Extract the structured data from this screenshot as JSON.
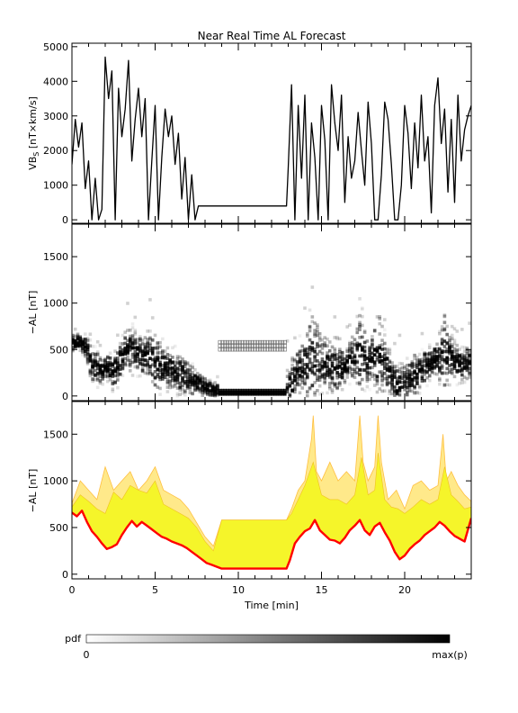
{
  "chart_data": [
    {
      "type": "line",
      "title": "Near Real Time AL Forecast",
      "ylabel": "VB",
      "ylabel_subscript": "S",
      "ylabel_units": "[nT×km/s]",
      "xlim": [
        0,
        24
      ],
      "ylim": [
        -100,
        5100
      ],
      "yticks": [
        0,
        1000,
        2000,
        3000,
        4000,
        5000
      ],
      "x_major_ticks": [
        0,
        5,
        10,
        15,
        20
      ],
      "series": [
        {
          "color": "#000000",
          "x": [
            0,
            0.2,
            0.4,
            0.6,
            0.8,
            1.0,
            1.2,
            1.4,
            1.6,
            1.8,
            2.0,
            2.2,
            2.4,
            2.6,
            2.8,
            3.0,
            3.2,
            3.4,
            3.6,
            3.8,
            4.0,
            4.2,
            4.4,
            4.6,
            4.8,
            5.0,
            5.2,
            5.4,
            5.6,
            5.8,
            6.0,
            6.2,
            6.4,
            6.6,
            6.8,
            7.0,
            7.2,
            7.4,
            7.6,
            8.0,
            9.0,
            10.0,
            11.0,
            12.0,
            12.9,
            13.0,
            13.2,
            13.4,
            13.6,
            13.8,
            14.0,
            14.2,
            14.4,
            14.6,
            14.8,
            15.0,
            15.2,
            15.4,
            15.6,
            15.8,
            16.0,
            16.2,
            16.4,
            16.6,
            16.8,
            17.0,
            17.2,
            17.4,
            17.6,
            17.8,
            18.0,
            18.2,
            18.4,
            18.6,
            18.8,
            19.0,
            19.2,
            19.4,
            19.6,
            19.8,
            20.0,
            20.2,
            20.4,
            20.6,
            20.8,
            21.0,
            21.2,
            21.4,
            21.6,
            21.8,
            22.0,
            22.2,
            22.4,
            22.6,
            22.8,
            23.0,
            23.2,
            23.4,
            23.6,
            23.8,
            24.0
          ],
          "y": [
            1600,
            2900,
            2100,
            2800,
            900,
            1700,
            0,
            1200,
            0,
            300,
            4700,
            3500,
            4300,
            0,
            3800,
            2400,
            3200,
            4600,
            1700,
            2900,
            3800,
            2400,
            3500,
            0,
            1700,
            3300,
            0,
            1800,
            3200,
            2400,
            3000,
            1600,
            2500,
            600,
            1800,
            0,
            1300,
            0,
            400,
            400,
            400,
            400,
            400,
            400,
            400,
            1500,
            3900,
            0,
            3300,
            1200,
            3600,
            0,
            2800,
            1800,
            0,
            3300,
            2300,
            0,
            3900,
            2800,
            2000,
            3600,
            500,
            2400,
            1200,
            1700,
            3100,
            2000,
            1000,
            3400,
            2200,
            0,
            0,
            1300,
            3400,
            2900,
            1600,
            0,
            0,
            1000,
            3300,
            2500,
            900,
            2800,
            1500,
            3600,
            1700,
            2400,
            200,
            3300,
            4100,
            2200,
            3200,
            800,
            2900,
            500,
            3600,
            1700,
            2600,
            3000,
            3300
          ]
        }
      ]
    },
    {
      "type": "heatmap",
      "ylabel": "−AL [nT]",
      "xlim": [
        0,
        24
      ],
      "ylim": [
        -50,
        1850
      ],
      "yticks": [
        0,
        500,
        1000,
        1500
      ],
      "x_major_ticks": [
        0,
        5,
        10,
        15,
        20
      ],
      "median_al": [
        [
          0,
          560
        ],
        [
          0.3,
          580
        ],
        [
          0.6,
          570
        ],
        [
          0.9,
          500
        ],
        [
          1.2,
          330
        ],
        [
          1.5,
          300
        ],
        [
          1.8,
          280
        ],
        [
          2.1,
          320
        ],
        [
          2.4,
          260
        ],
        [
          2.7,
          300
        ],
        [
          3.0,
          420
        ],
        [
          3.3,
          540
        ],
        [
          3.6,
          480
        ],
        [
          3.9,
          460
        ],
        [
          4.2,
          430
        ],
        [
          4.5,
          460
        ],
        [
          4.8,
          380
        ],
        [
          5.1,
          350
        ],
        [
          5.4,
          330
        ],
        [
          5.7,
          290
        ],
        [
          6.0,
          310
        ],
        [
          6.3,
          250
        ],
        [
          6.6,
          230
        ],
        [
          6.9,
          200
        ],
        [
          7.2,
          170
        ],
        [
          7.5,
          150
        ],
        [
          7.8,
          110
        ],
        [
          8.1,
          90
        ],
        [
          8.4,
          60
        ],
        [
          8.7,
          50
        ],
        [
          9.0,
          40
        ],
        [
          10.0,
          40
        ],
        [
          11.0,
          40
        ],
        [
          12.0,
          40
        ],
        [
          12.9,
          40
        ],
        [
          13.1,
          100
        ],
        [
          13.4,
          210
        ],
        [
          13.7,
          300
        ],
        [
          14.0,
          330
        ],
        [
          14.3,
          380
        ],
        [
          14.6,
          420
        ],
        [
          14.9,
          390
        ],
        [
          15.2,
          350
        ],
        [
          15.5,
          320
        ],
        [
          15.8,
          300
        ],
        [
          16.1,
          290
        ],
        [
          16.4,
          300
        ],
        [
          16.7,
          380
        ],
        [
          17.0,
          430
        ],
        [
          17.3,
          470
        ],
        [
          17.6,
          420
        ],
        [
          17.9,
          380
        ],
        [
          18.2,
          450
        ],
        [
          18.5,
          420
        ],
        [
          18.8,
          350
        ],
        [
          19.1,
          260
        ],
        [
          19.4,
          150
        ],
        [
          19.7,
          90
        ],
        [
          20.0,
          120
        ],
        [
          20.3,
          170
        ],
        [
          20.6,
          220
        ],
        [
          20.9,
          250
        ],
        [
          21.2,
          300
        ],
        [
          21.5,
          350
        ],
        [
          21.8,
          380
        ],
        [
          22.1,
          420
        ],
        [
          22.4,
          480
        ],
        [
          22.7,
          430
        ],
        [
          23.0,
          380
        ],
        [
          23.3,
          340
        ],
        [
          23.6,
          330
        ],
        [
          24.0,
          380
        ]
      ],
      "high_al": [
        [
          0,
          700
        ],
        [
          1.0,
          850
        ],
        [
          2.0,
          600
        ],
        [
          3.0,
          900
        ],
        [
          3.5,
          1100
        ],
        [
          4.0,
          920
        ],
        [
          4.5,
          1000
        ],
        [
          5.0,
          1150
        ],
        [
          5.5,
          900
        ],
        [
          6.0,
          800
        ],
        [
          6.5,
          760
        ],
        [
          7.0,
          600
        ],
        [
          7.5,
          450
        ],
        [
          8.0,
          300
        ],
        [
          8.5,
          250
        ],
        [
          9.0,
          590
        ],
        [
          12.9,
          590
        ],
        [
          13.2,
          700
        ],
        [
          14.0,
          1200
        ],
        [
          14.5,
          1700
        ],
        [
          15.0,
          1100
        ],
        [
          15.5,
          1000
        ],
        [
          16.0,
          1100
        ],
        [
          16.5,
          800
        ],
        [
          17.0,
          1000
        ],
        [
          17.3,
          1700
        ],
        [
          17.6,
          1200
        ],
        [
          18.0,
          900
        ],
        [
          18.4,
          1700
        ],
        [
          18.8,
          1100
        ],
        [
          19.2,
          700
        ],
        [
          19.6,
          650
        ],
        [
          20.0,
          700
        ],
        [
          20.5,
          800
        ],
        [
          21.0,
          700
        ],
        [
          21.5,
          800
        ],
        [
          22.0,
          900
        ],
        [
          22.4,
          1500
        ],
        [
          22.8,
          1000
        ],
        [
          23.2,
          800
        ],
        [
          23.6,
          750
        ],
        [
          24.0,
          800
        ]
      ]
    },
    {
      "type": "area",
      "ylabel": "−AL [nT]",
      "xlabel": "Time [min]",
      "xlim": [
        0,
        24
      ],
      "ylim": [
        -50,
        1850
      ],
      "yticks": [
        0,
        500,
        1000,
        1500
      ],
      "x_major_ticks": [
        0,
        5,
        10,
        15,
        20
      ],
      "series": [
        {
          "role": "lower-bound",
          "color": "#ff0000",
          "x": [
            0,
            0.3,
            0.6,
            0.9,
            1.2,
            1.5,
            1.8,
            2.1,
            2.4,
            2.7,
            3.0,
            3.3,
            3.6,
            3.9,
            4.2,
            4.5,
            4.8,
            5.1,
            5.4,
            5.7,
            6.0,
            6.3,
            6.6,
            6.9,
            7.2,
            7.5,
            7.8,
            8.1,
            8.4,
            8.7,
            9.0,
            10.0,
            11.0,
            12.0,
            12.9,
            13.1,
            13.4,
            13.7,
            14.0,
            14.3,
            14.6,
            14.9,
            15.2,
            15.5,
            15.8,
            16.1,
            16.4,
            16.7,
            17.0,
            17.3,
            17.6,
            17.9,
            18.2,
            18.5,
            18.8,
            19.1,
            19.4,
            19.7,
            20.0,
            20.3,
            20.6,
            20.9,
            21.2,
            21.5,
            21.8,
            22.1,
            22.4,
            22.7,
            23.0,
            23.3,
            23.6,
            24.0
          ],
          "y": [
            660,
            620,
            680,
            560,
            460,
            400,
            330,
            270,
            290,
            320,
            420,
            500,
            570,
            510,
            560,
            520,
            480,
            440,
            400,
            380,
            350,
            330,
            310,
            280,
            240,
            200,
            160,
            120,
            100,
            80,
            60,
            60,
            60,
            60,
            60,
            150,
            330,
            400,
            460,
            490,
            580,
            470,
            420,
            370,
            360,
            330,
            390,
            470,
            520,
            580,
            470,
            420,
            510,
            550,
            450,
            360,
            240,
            160,
            200,
            270,
            320,
            360,
            420,
            460,
            500,
            560,
            520,
            460,
            410,
            380,
            350,
            600
          ]
        },
        {
          "role": "inner-band",
          "color": "#f5f52a",
          "x": [
            0,
            0.5,
            1.0,
            1.5,
            2.0,
            2.5,
            3.0,
            3.5,
            4.0,
            4.5,
            5.0,
            5.5,
            6.0,
            6.5,
            7.0,
            7.5,
            8.0,
            8.5,
            9.0,
            12.9,
            13.2,
            13.6,
            14.0,
            14.5,
            15.0,
            15.5,
            16.0,
            16.5,
            17.0,
            17.4,
            17.8,
            18.2,
            18.4,
            18.8,
            19.2,
            19.6,
            20.0,
            20.5,
            21.0,
            21.5,
            22.0,
            22.4,
            22.8,
            23.2,
            23.6,
            24.0
          ],
          "y": [
            720,
            850,
            780,
            700,
            650,
            880,
            800,
            950,
            900,
            870,
            1000,
            750,
            700,
            650,
            600,
            500,
            350,
            250,
            580,
            580,
            650,
            800,
            950,
            1200,
            850,
            800,
            800,
            750,
            850,
            1250,
            850,
            900,
            1300,
            800,
            720,
            700,
            650,
            720,
            800,
            750,
            800,
            1150,
            850,
            780,
            700,
            720
          ]
        },
        {
          "role": "upper-bound",
          "color": "#ffbf40",
          "x": [
            0,
            0.5,
            1.0,
            1.5,
            2.0,
            2.5,
            3.0,
            3.5,
            4.0,
            4.5,
            5.0,
            5.5,
            6.0,
            6.5,
            7.0,
            7.5,
            8.0,
            8.5,
            9.0,
            12.9,
            13.2,
            13.6,
            14.0,
            14.4,
            14.5,
            14.7,
            15.0,
            15.5,
            16.0,
            16.5,
            17.0,
            17.3,
            17.5,
            17.8,
            18.2,
            18.4,
            18.6,
            19.0,
            19.5,
            20.0,
            20.5,
            21.0,
            21.5,
            22.0,
            22.3,
            22.5,
            22.8,
            23.2,
            23.6,
            24.0
          ],
          "y": [
            760,
            1000,
            900,
            800,
            1150,
            900,
            1000,
            1100,
            900,
            1000,
            1150,
            900,
            850,
            800,
            700,
            550,
            400,
            300,
            580,
            580,
            700,
            900,
            1000,
            1450,
            1700,
            1100,
            1000,
            1200,
            1000,
            1100,
            1000,
            1700,
            1200,
            1000,
            1150,
            1700,
            1200,
            800,
            900,
            700,
            950,
            1000,
            900,
            950,
            1500,
            1000,
            1100,
            950,
            850,
            780
          ]
        }
      ]
    }
  ],
  "colorbar": {
    "label": "pdf",
    "min_label": "0",
    "max_label": "max(p)"
  }
}
